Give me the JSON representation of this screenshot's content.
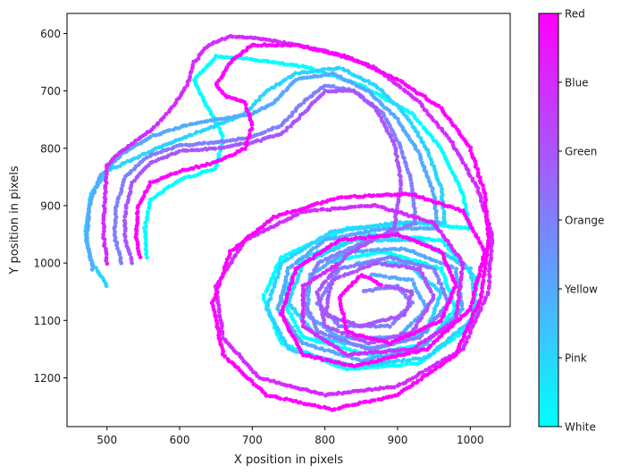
{
  "chart_data": {
    "type": "scatter",
    "title": "",
    "xlabel": "X position in pixels",
    "ylabel": "Y position in pixels",
    "xlim": [
      445,
      1055
    ],
    "ylim": [
      1285,
      565
    ],
    "y_inverted": true,
    "grid": false,
    "xticks": [
      500,
      600,
      700,
      800,
      900,
      1000
    ],
    "yticks": [
      600,
      700,
      800,
      900,
      1000,
      1100,
      1200
    ],
    "colorbar": {
      "colormap": "cool",
      "colors": [
        "#00ffff",
        "#ff00ff"
      ],
      "labels": [
        "White",
        "Pink",
        "Yellow",
        "Orange",
        "Green",
        "Blue",
        "Red"
      ],
      "position": "right"
    },
    "marker_size": 5,
    "series": [
      {
        "name": "White",
        "c": 0.0,
        "path": [
          [
            555,
            990
          ],
          [
            552,
            940
          ],
          [
            560,
            890
          ],
          [
            600,
            855
          ],
          [
            650,
            835
          ],
          [
            660,
            780
          ],
          [
            635,
            720
          ],
          [
            620,
            680
          ],
          [
            650,
            640
          ],
          [
            700,
            645
          ],
          [
            780,
            660
          ],
          [
            850,
            690
          ],
          [
            920,
            740
          ],
          [
            960,
            800
          ],
          [
            990,
            880
          ],
          [
            1000,
            940
          ],
          [
            930,
            930
          ],
          [
            830,
            940
          ],
          [
            740,
            990
          ],
          [
            715,
            1060
          ],
          [
            740,
            1140
          ],
          [
            830,
            1185
          ],
          [
            930,
            1175
          ],
          [
            1000,
            1110
          ],
          [
            1010,
            1030
          ],
          [
            960,
            960
          ],
          [
            860,
            950
          ],
          [
            770,
            990
          ],
          [
            740,
            1060
          ],
          [
            770,
            1130
          ],
          [
            860,
            1160
          ],
          [
            940,
            1140
          ],
          [
            980,
            1080
          ],
          [
            960,
            1010
          ],
          [
            880,
            980
          ],
          [
            800,
            1000
          ]
        ]
      },
      {
        "name": "Pink",
        "c": 0.166,
        "path": [
          [
            500,
            1040
          ],
          [
            480,
            1000
          ],
          [
            470,
            950
          ],
          [
            478,
            880
          ],
          [
            500,
            840
          ],
          [
            560,
            805
          ],
          [
            610,
            780
          ],
          [
            650,
            760
          ],
          [
            690,
            740
          ],
          [
            720,
            700
          ],
          [
            760,
            670
          ],
          [
            820,
            660
          ],
          [
            870,
            690
          ],
          [
            910,
            740
          ],
          [
            940,
            800
          ],
          [
            960,
            870
          ],
          [
            965,
            930
          ],
          [
            900,
            930
          ],
          [
            810,
            945
          ],
          [
            740,
            1000
          ],
          [
            720,
            1080
          ],
          [
            750,
            1150
          ],
          [
            840,
            1180
          ],
          [
            940,
            1165
          ],
          [
            1010,
            1090
          ],
          [
            1000,
            1010
          ],
          [
            930,
            960
          ],
          [
            840,
            960
          ],
          [
            770,
            1000
          ],
          [
            750,
            1070
          ],
          [
            790,
            1130
          ],
          [
            870,
            1150
          ],
          [
            940,
            1120
          ],
          [
            960,
            1050
          ],
          [
            910,
            1000
          ],
          [
            840,
            1000
          ]
        ]
      },
      {
        "name": "Yellow",
        "c": 0.333,
        "path": [
          [
            480,
            1010
          ],
          [
            472,
            960
          ],
          [
            476,
            900
          ],
          [
            490,
            850
          ],
          [
            520,
            810
          ],
          [
            560,
            780
          ],
          [
            610,
            760
          ],
          [
            650,
            750
          ],
          [
            700,
            740
          ],
          [
            730,
            720
          ],
          [
            760,
            680
          ],
          [
            810,
            670
          ],
          [
            860,
            700
          ],
          [
            900,
            750
          ],
          [
            930,
            810
          ],
          [
            950,
            880
          ],
          [
            955,
            940
          ],
          [
            880,
            940
          ],
          [
            800,
            960
          ],
          [
            750,
            1010
          ],
          [
            735,
            1080
          ],
          [
            770,
            1140
          ],
          [
            850,
            1170
          ],
          [
            930,
            1150
          ],
          [
            990,
            1080
          ],
          [
            980,
            1010
          ],
          [
            910,
            975
          ],
          [
            830,
            980
          ],
          [
            780,
            1020
          ],
          [
            775,
            1090
          ],
          [
            820,
            1130
          ],
          [
            900,
            1130
          ],
          [
            940,
            1080
          ],
          [
            920,
            1030
          ],
          [
            860,
            1020
          ]
        ]
      },
      {
        "name": "Orange",
        "c": 0.5,
        "path": [
          [
            520,
            1000
          ],
          [
            510,
            950
          ],
          [
            513,
            900
          ],
          [
            525,
            850
          ],
          [
            555,
            815
          ],
          [
            600,
            795
          ],
          [
            650,
            790
          ],
          [
            700,
            780
          ],
          [
            740,
            760
          ],
          [
            770,
            720
          ],
          [
            800,
            690
          ],
          [
            840,
            700
          ],
          [
            880,
            740
          ],
          [
            905,
            800
          ],
          [
            920,
            860
          ],
          [
            925,
            930
          ],
          [
            860,
            960
          ],
          [
            790,
            1000
          ],
          [
            770,
            1060
          ],
          [
            790,
            1120
          ],
          [
            860,
            1150
          ],
          [
            930,
            1130
          ],
          [
            970,
            1070
          ],
          [
            950,
            1010
          ],
          [
            890,
            990
          ],
          [
            820,
            1010
          ],
          [
            790,
            1070
          ],
          [
            820,
            1110
          ],
          [
            890,
            1110
          ],
          [
            920,
            1070
          ],
          [
            900,
            1040
          ],
          [
            850,
            1050
          ]
        ]
      },
      {
        "name": "Green",
        "c": 0.666,
        "path": [
          [
            535,
            1000
          ],
          [
            525,
            960
          ],
          [
            525,
            910
          ],
          [
            535,
            860
          ],
          [
            560,
            825
          ],
          [
            600,
            805
          ],
          [
            650,
            800
          ],
          [
            700,
            790
          ],
          [
            740,
            775
          ],
          [
            770,
            740
          ],
          [
            800,
            700
          ],
          [
            840,
            700
          ],
          [
            870,
            730
          ],
          [
            895,
            790
          ],
          [
            905,
            860
          ],
          [
            895,
            940
          ],
          [
            830,
            985
          ],
          [
            790,
            1050
          ],
          [
            800,
            1110
          ],
          [
            860,
            1140
          ],
          [
            920,
            1120
          ],
          [
            950,
            1060
          ],
          [
            930,
            1010
          ],
          [
            870,
            1000
          ],
          [
            810,
            1030
          ],
          [
            800,
            1090
          ],
          [
            850,
            1110
          ],
          [
            910,
            1090
          ],
          [
            920,
            1050
          ],
          [
            880,
            1040
          ]
        ]
      },
      {
        "name": "Blue",
        "c": 0.833,
        "path": [
          [
            500,
            1000
          ],
          [
            495,
            950
          ],
          [
            497,
            890
          ],
          [
            500,
            830
          ],
          [
            520,
            805
          ],
          [
            560,
            770
          ],
          [
            590,
            730
          ],
          [
            610,
            690
          ],
          [
            620,
            650
          ],
          [
            640,
            620
          ],
          [
            670,
            605
          ],
          [
            720,
            610
          ],
          [
            800,
            630
          ],
          [
            870,
            660
          ],
          [
            930,
            720
          ],
          [
            975,
            790
          ],
          [
            1010,
            870
          ],
          [
            1030,
            950
          ],
          [
            1025,
            1050
          ],
          [
            990,
            1150
          ],
          [
            900,
            1215
          ],
          [
            800,
            1230
          ],
          [
            710,
            1200
          ],
          [
            660,
            1130
          ],
          [
            650,
            1040
          ],
          [
            690,
            960
          ],
          [
            770,
            910
          ],
          [
            870,
            900
          ],
          [
            950,
            930
          ],
          [
            990,
            1000
          ],
          [
            980,
            1100
          ],
          [
            920,
            1150
          ],
          [
            830,
            1160
          ],
          [
            770,
            1110
          ],
          [
            770,
            1040
          ],
          [
            820,
            1000
          ]
        ]
      },
      {
        "name": "Red",
        "c": 1.0,
        "path": [
          [
            545,
            990
          ],
          [
            540,
            950
          ],
          [
            543,
            900
          ],
          [
            560,
            860
          ],
          [
            600,
            840
          ],
          [
            650,
            825
          ],
          [
            690,
            800
          ],
          [
            700,
            760
          ],
          [
            690,
            720
          ],
          [
            665,
            710
          ],
          [
            650,
            690
          ],
          [
            670,
            650
          ],
          [
            700,
            620
          ],
          [
            760,
            620
          ],
          [
            830,
            640
          ],
          [
            900,
            680
          ],
          [
            960,
            730
          ],
          [
            1000,
            800
          ],
          [
            1020,
            880
          ],
          [
            1025,
            960
          ],
          [
            1015,
            1060
          ],
          [
            980,
            1160
          ],
          [
            900,
            1230
          ],
          [
            810,
            1255
          ],
          [
            720,
            1230
          ],
          [
            660,
            1160
          ],
          [
            645,
            1070
          ],
          [
            670,
            980
          ],
          [
            730,
            920
          ],
          [
            820,
            885
          ],
          [
            920,
            880
          ],
          [
            990,
            910
          ],
          [
            1020,
            980
          ],
          [
            1000,
            1080
          ],
          [
            940,
            1150
          ],
          [
            840,
            1180
          ],
          [
            770,
            1160
          ],
          [
            740,
            1090
          ],
          [
            760,
            1010
          ],
          [
            820,
            960
          ],
          [
            900,
            950
          ],
          [
            960,
            980
          ],
          [
            980,
            1040
          ],
          [
            960,
            1100
          ],
          [
            890,
            1140
          ],
          [
            830,
            1120
          ],
          [
            820,
            1060
          ],
          [
            850,
            1020
          ],
          [
            880,
            1040
          ]
        ]
      }
    ]
  }
}
